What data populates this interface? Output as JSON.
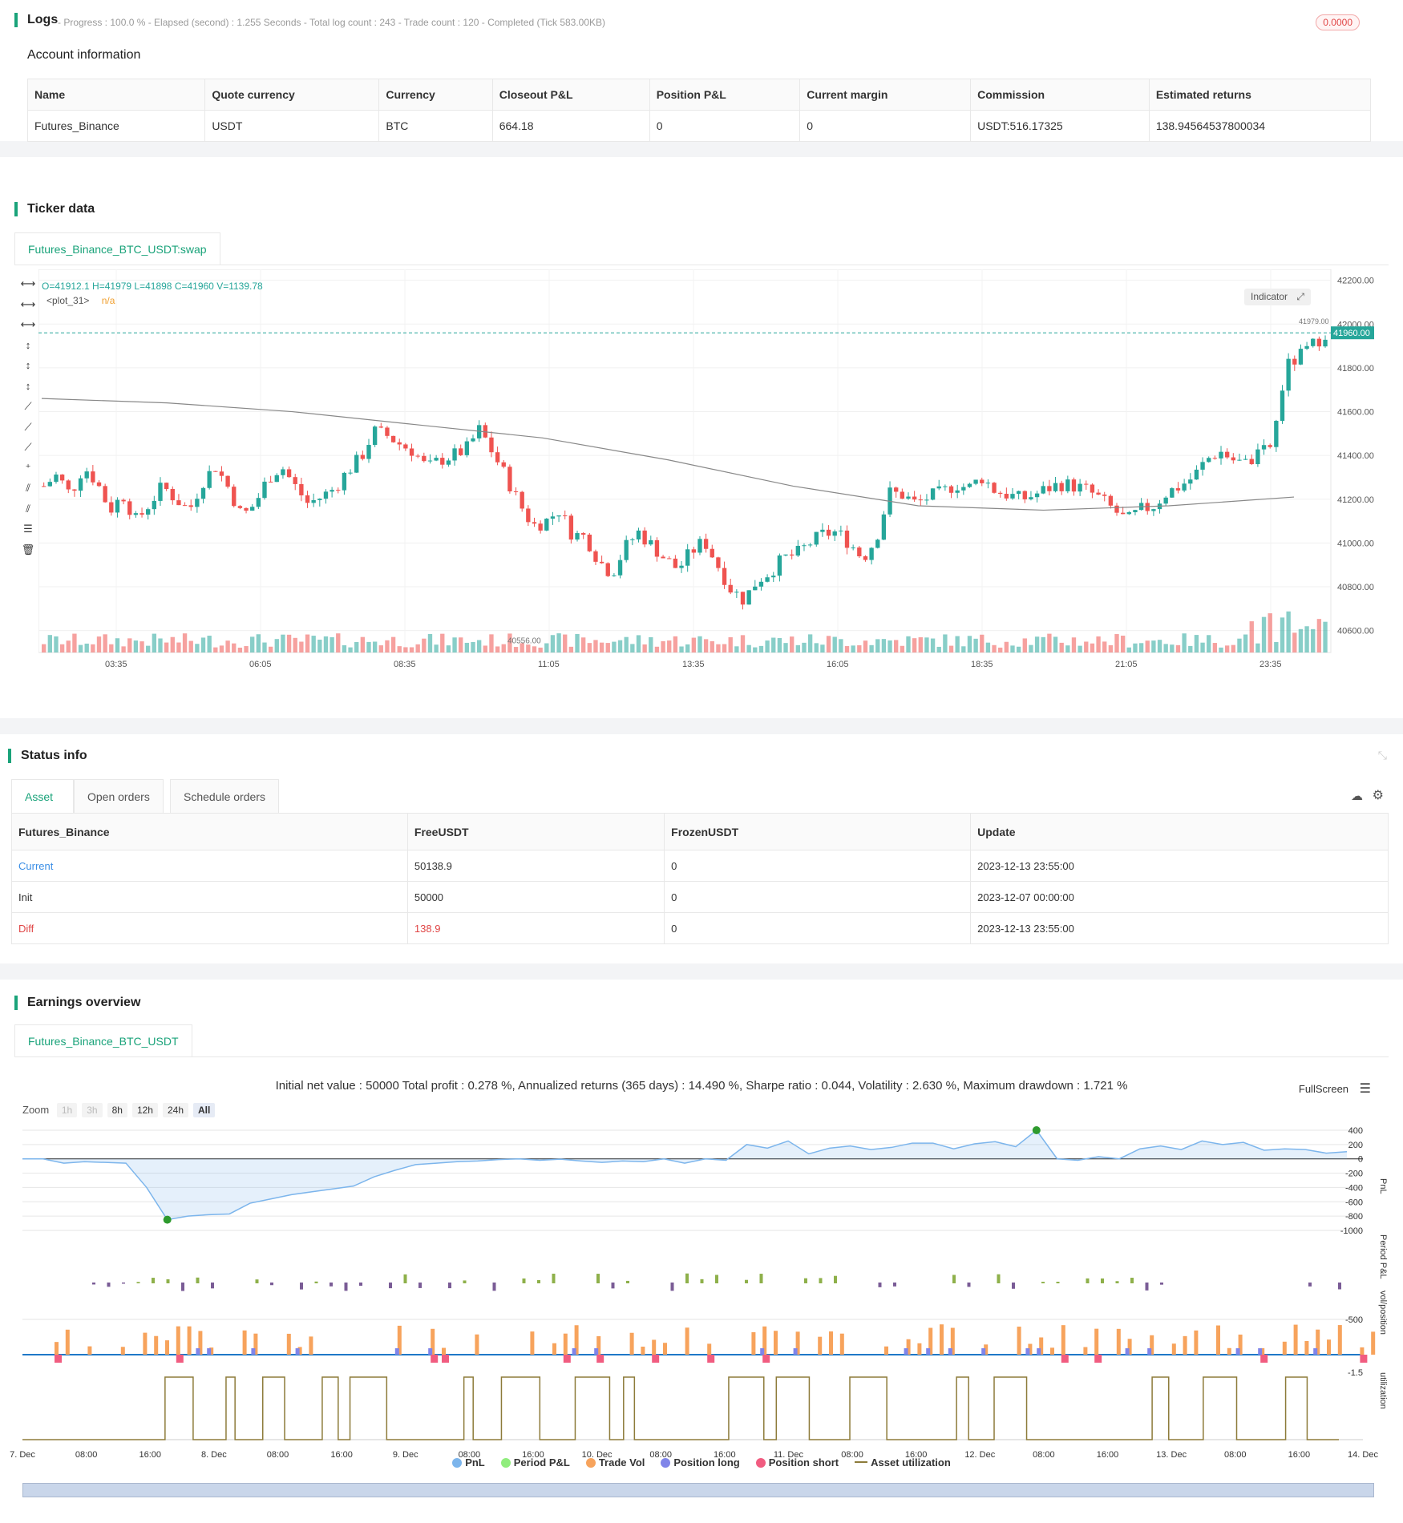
{
  "logs": {
    "title": "Logs",
    "status_line": "- Progress : 100.0 % - Elapsed (second) : 1.255 Seconds - Total log count : 243 - Trade count : 120 - Completed (Tick 583.00KB)",
    "badge": "0.0000",
    "account_title": "Account information",
    "columns": [
      "Name",
      "Quote currency",
      "Currency",
      "Closeout P&L",
      "Position P&L",
      "Current margin",
      "Commission",
      "Estimated returns"
    ],
    "row": [
      "Futures_Binance",
      "USDT",
      "BTC",
      "664.18",
      "0",
      "0",
      "USDT:516.17325",
      "138.94564537800034"
    ]
  },
  "ticker": {
    "title": "Ticker data",
    "tab": "Futures_Binance_BTC_USDT:swap",
    "ohlc": "O=41912.1 H=41979 L=41898 C=41960 V=1139.78",
    "plot_label": "<plot_31>",
    "plot_value": "n/a",
    "indicator_button": "Indicator",
    "price_axis": [
      "42200.00",
      "42000.00",
      "41800.00",
      "41600.00",
      "41400.00",
      "41200.00",
      "41000.00",
      "40800.00",
      "40600.00"
    ],
    "last_price": "41960.00",
    "high_label": "41979.00",
    "low_label": "40556.00",
    "time_axis": [
      "03:35",
      "06:05",
      "08:35",
      "11:05",
      "13:35",
      "16:05",
      "18:35",
      "21:05",
      "23:35"
    ],
    "up_color": "#26a69a",
    "down_color": "#ef5350"
  },
  "chart_data": {
    "type": "candlestick",
    "ylim": [
      40500,
      42250
    ],
    "candles_close_path": [
      41260,
      41310,
      41220,
      41350,
      41280,
      41150,
      41220,
      41100,
      41180,
      41260,
      41200,
      41150,
      41280,
      41350,
      41250,
      41120,
      41180,
      41300,
      41350,
      41260,
      41180,
      41210,
      41250,
      41330,
      41390,
      41510,
      41490,
      41450,
      41420,
      41340,
      41380,
      41400,
      41430,
      41520,
      41410,
      41300,
      41180,
      41080,
      41100,
      41150,
      41040,
      41030,
      40920,
      40860,
      40980,
      41050,
      40990,
      40930,
      40880,
      40960,
      41010,
      40900,
      40790,
      40740,
      40830,
      40870,
      40930,
      40950,
      41000,
      41040,
      41050,
      41000,
      40930,
      41020,
      41230,
      41220,
      41180,
      41210,
      41230,
      41270,
      41250,
      41300,
      41240,
      41220,
      41200,
      41220,
      41250,
      41270,
      41260,
      41240,
      41200,
      41150,
      41100,
      41150,
      41170,
      41230,
      41260,
      41300,
      41380,
      41420,
      41380,
      41360,
      41400,
      41450,
      41800,
      41850,
      41900,
      41960
    ],
    "ma_line": [
      [
        0,
        41660
      ],
      [
        0.1,
        41640
      ],
      [
        0.2,
        41600
      ],
      [
        0.3,
        41540
      ],
      [
        0.4,
        41480
      ],
      [
        0.5,
        41380
      ],
      [
        0.6,
        41260
      ],
      [
        0.7,
        41170
      ],
      [
        0.8,
        41150
      ],
      [
        0.9,
        41170
      ],
      [
        1.0,
        41210
      ]
    ]
  },
  "status": {
    "title": "Status info",
    "tabs": [
      "Asset",
      "Open orders",
      "Schedule orders"
    ],
    "columns": [
      "Futures_Binance",
      "FreeUSDT",
      "FrozenUSDT",
      "Update"
    ],
    "rows": [
      [
        "Current",
        "50138.9",
        "0",
        "2023-12-13 23:55:00"
      ],
      [
        "Init",
        "50000",
        "0",
        "2023-12-07 00:00:00"
      ],
      [
        "Diff",
        "138.9",
        "0",
        "2023-12-13 23:55:00"
      ]
    ]
  },
  "earnings": {
    "title": "Earnings overview",
    "tab": "Futures_Binance_BTC_USDT",
    "summary": "Initial net value : 50000 Total profit : 0.278 %, Annualized returns (365 days) : 14.490 %, Sharpe ratio : 0.044, Volatility : 2.630 %, Maximum drawdown : 1.721 %",
    "fullscreen": "FullScreen",
    "zoom_label": "Zoom",
    "zoom_buttons": [
      "1h",
      "3h",
      "8h",
      "12h",
      "24h",
      "All"
    ],
    "pnl_axis": [
      "400",
      "200",
      "0",
      "-200",
      "-400",
      "-600",
      "-800",
      "-1000"
    ],
    "pnl_label": "PnL",
    "period_axis": [
      "-500"
    ],
    "period_label": "Period P&L",
    "vol_axis": [
      "-1.5"
    ],
    "vol_label": "vol/position",
    "util_label": "utilization",
    "x_axis": [
      "7. Dec",
      "08:00",
      "16:00",
      "8. Dec",
      "08:00",
      "16:00",
      "9. Dec",
      "08:00",
      "16:00",
      "10. Dec",
      "08:00",
      "16:00",
      "11. Dec",
      "08:00",
      "16:00",
      "12. Dec",
      "08:00",
      "16:00",
      "13. Dec",
      "08:00",
      "16:00",
      "14. Dec"
    ],
    "legend": [
      {
        "label": "PnL",
        "color": "#7cb5ec"
      },
      {
        "label": "Period P&L",
        "color": "#90ed7d"
      },
      {
        "label": "Trade Vol",
        "color": "#f7a35c"
      },
      {
        "label": "Position long",
        "color": "#8085e9"
      },
      {
        "label": "Position short",
        "color": "#f15c80"
      },
      {
        "label": "Asset utilization",
        "color": "#8d7b3a"
      }
    ],
    "pnl_series": [
      0,
      0,
      -60,
      -40,
      -50,
      -60,
      -400,
      -850,
      -800,
      -780,
      -770,
      -620,
      -560,
      -500,
      -460,
      -420,
      -380,
      -250,
      -160,
      -80,
      -60,
      -40,
      -30,
      -10,
      0,
      -20,
      -5,
      -30,
      -50,
      -30,
      -40,
      0,
      -60,
      0,
      -20,
      200,
      150,
      250,
      70,
      150,
      180,
      130,
      160,
      220,
      220,
      140,
      210,
      240,
      170,
      400,
      0,
      -20,
      30,
      0,
      140,
      180,
      130,
      250,
      200,
      230,
      120,
      140,
      130,
      80,
      100
    ]
  }
}
